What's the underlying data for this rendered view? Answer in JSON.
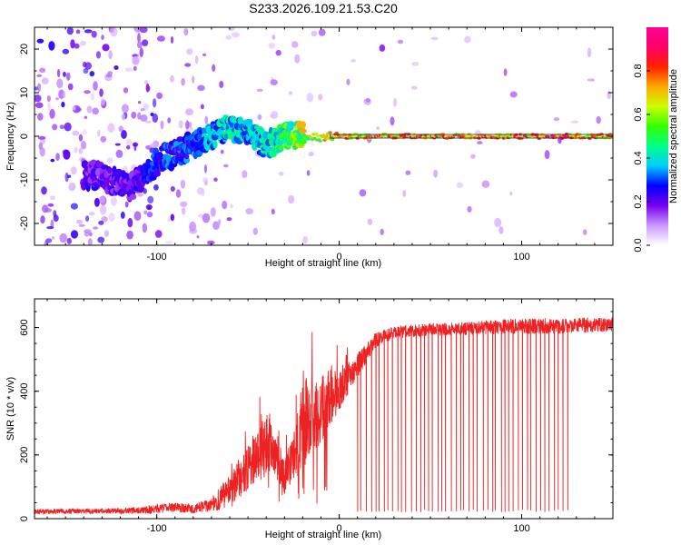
{
  "title": "S233.2026.109.21.53.C20",
  "chart_data": [
    {
      "type": "heatmap",
      "xlabel": "Height of straight line (km)",
      "ylabel": "Frequency (Hz)",
      "xlim": [
        -167,
        150
      ],
      "ylim": [
        -25,
        25
      ],
      "x_ticks": [
        "-100",
        "0",
        "100"
      ],
      "y_ticks": [
        "-20",
        "-10",
        "0",
        "10",
        "20"
      ],
      "colorbar": {
        "label": "Normalized spectral amplitude",
        "ticks": [
          "0.0",
          "0.2",
          "0.4",
          "0.6",
          "0.8"
        ],
        "range": [
          0,
          1
        ],
        "colors": [
          "#ffffff",
          "#cc99ff",
          "#7700ee",
          "#0000ff",
          "#00ccff",
          "#00ff88",
          "#33ff00",
          "#ccff00",
          "#ffaa00",
          "#ff2200",
          "#ff0066",
          "#ff0099"
        ]
      },
      "ridge": {
        "description_x": [
          -130,
          -115,
          -100,
          -85,
          -70,
          -60,
          -50,
          -40,
          -30,
          -20,
          -10,
          0,
          20,
          50,
          100,
          150
        ],
        "frequency": [
          -9,
          -12,
          -6,
          -3,
          0,
          2,
          1,
          -2,
          0,
          0,
          0,
          0,
          0,
          0,
          0,
          0
        ],
        "amplitude": [
          0.25,
          0.25,
          0.35,
          0.35,
          0.45,
          0.5,
          0.45,
          0.5,
          0.6,
          0.75,
          0.85,
          0.9,
          0.95,
          0.97,
          0.97,
          0.97
        ]
      }
    },
    {
      "type": "line",
      "xlabel": "Height of straight line (km)",
      "ylabel": "SNR (10 * v/v)",
      "xlim": [
        -167,
        150
      ],
      "ylim": [
        0,
        690
      ],
      "x_ticks": [
        "-100",
        "0",
        "100"
      ],
      "y_ticks": [
        "0",
        "200",
        "400",
        "600"
      ],
      "line_color": "#ee2222",
      "envelope": {
        "x": [
          -167,
          -130,
          -110,
          -100,
          -90,
          -80,
          -70,
          -60,
          -50,
          -45,
          -40,
          -35,
          -30,
          -25,
          -20,
          -15,
          -10,
          -5,
          0,
          5,
          10,
          15,
          20,
          25,
          30,
          40,
          60,
          80,
          100,
          120,
          150
        ],
        "mean": [
          22,
          24,
          26,
          30,
          36,
          30,
          45,
          85,
          165,
          200,
          240,
          190,
          130,
          180,
          300,
          330,
          345,
          380,
          410,
          440,
          480,
          520,
          560,
          575,
          585,
          590,
          595,
          600,
          605,
          605,
          610
        ],
        "amp": [
          8,
          8,
          10,
          14,
          16,
          14,
          22,
          55,
          75,
          85,
          120,
          60,
          50,
          100,
          150,
          130,
          110,
          90,
          70,
          50,
          40,
          30,
          25,
          20,
          20,
          20,
          20,
          22,
          25,
          25,
          22
        ]
      },
      "dropouts": {
        "x_start": 10,
        "x_end": 125,
        "count": 48,
        "min_value": 20
      }
    }
  ]
}
